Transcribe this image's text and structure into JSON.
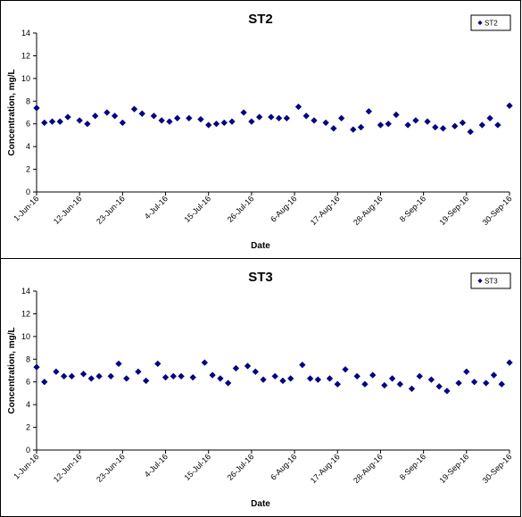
{
  "colors": {
    "marker": "#00008B",
    "axis": "#000000"
  },
  "chart_data": [
    {
      "type": "scatter",
      "title": "ST2",
      "xlabel": "Date",
      "ylabel": "Concentration, mg/L",
      "ylim": [
        0,
        14
      ],
      "yticks": [
        0,
        2,
        4,
        6,
        8,
        10,
        12,
        14
      ],
      "xlim": [
        "1-Jun-16",
        "30-Sep-16"
      ],
      "xticks": [
        "1-Jun-16",
        "12-Jun-16",
        "23-Jun-16",
        "4-Jul-16",
        "15-Jul-16",
        "26-Jul-16",
        "6-Aug-16",
        "17-Aug-16",
        "28-Aug-16",
        "8-Sep-16",
        "19-Sep-16",
        "30-Sep-16"
      ],
      "grid": false,
      "legend_position": "top-right",
      "series": [
        {
          "name": "ST2",
          "marker": "diamond",
          "points": [
            [
              "2016-06-01",
              7.4
            ],
            [
              "2016-06-03",
              6.1
            ],
            [
              "2016-06-05",
              6.2
            ],
            [
              "2016-06-07",
              6.2
            ],
            [
              "2016-06-09",
              6.6
            ],
            [
              "2016-06-12",
              6.3
            ],
            [
              "2016-06-14",
              6.0
            ],
            [
              "2016-06-16",
              6.7
            ],
            [
              "2016-06-19",
              7.0
            ],
            [
              "2016-06-21",
              6.7
            ],
            [
              "2016-06-23",
              6.1
            ],
            [
              "2016-06-26",
              7.3
            ],
            [
              "2016-06-28",
              6.9
            ],
            [
              "2016-07-01",
              6.7
            ],
            [
              "2016-07-03",
              6.3
            ],
            [
              "2016-07-05",
              6.2
            ],
            [
              "2016-07-07",
              6.5
            ],
            [
              "2016-07-10",
              6.5
            ],
            [
              "2016-07-13",
              6.4
            ],
            [
              "2016-07-15",
              5.9
            ],
            [
              "2016-07-17",
              6.0
            ],
            [
              "2016-07-19",
              6.1
            ],
            [
              "2016-07-21",
              6.2
            ],
            [
              "2016-07-24",
              7.0
            ],
            [
              "2016-07-26",
              6.2
            ],
            [
              "2016-07-28",
              6.6
            ],
            [
              "2016-07-31",
              6.6
            ],
            [
              "2016-08-02",
              6.5
            ],
            [
              "2016-08-04",
              6.5
            ],
            [
              "2016-08-07",
              7.5
            ],
            [
              "2016-08-09",
              6.7
            ],
            [
              "2016-08-11",
              6.3
            ],
            [
              "2016-08-14",
              6.1
            ],
            [
              "2016-08-16",
              5.6
            ],
            [
              "2016-08-18",
              6.5
            ],
            [
              "2016-08-21",
              5.5
            ],
            [
              "2016-08-23",
              5.7
            ],
            [
              "2016-08-25",
              7.1
            ],
            [
              "2016-08-28",
              5.9
            ],
            [
              "2016-08-30",
              6.0
            ],
            [
              "2016-09-01",
              6.8
            ],
            [
              "2016-09-04",
              5.9
            ],
            [
              "2016-09-06",
              6.3
            ],
            [
              "2016-09-09",
              6.2
            ],
            [
              "2016-09-11",
              5.7
            ],
            [
              "2016-09-13",
              5.6
            ],
            [
              "2016-09-16",
              5.8
            ],
            [
              "2016-09-18",
              6.1
            ],
            [
              "2016-09-20",
              5.3
            ],
            [
              "2016-09-23",
              5.9
            ],
            [
              "2016-09-25",
              6.5
            ],
            [
              "2016-09-27",
              5.9
            ],
            [
              "2016-09-30",
              7.6
            ]
          ]
        }
      ]
    },
    {
      "type": "scatter",
      "title": "ST3",
      "xlabel": "Date",
      "ylabel": "Concentration, mg/L",
      "ylim": [
        0,
        14
      ],
      "yticks": [
        0,
        2,
        4,
        6,
        8,
        10,
        12,
        14
      ],
      "xlim": [
        "1-Jun-16",
        "30-Sep-16"
      ],
      "xticks": [
        "1-Jun-16",
        "12-Jun-16",
        "23-Jun-16",
        "4-Jul-16",
        "15-Jul-16",
        "26-Jul-16",
        "6-Aug-16",
        "17-Aug-16",
        "28-Aug-16",
        "8-Sep-16",
        "19-Sep-16",
        "30-Sep-16"
      ],
      "grid": false,
      "legend_position": "top-right",
      "series": [
        {
          "name": "ST3",
          "marker": "diamond",
          "points": [
            [
              "2016-06-01",
              7.3
            ],
            [
              "2016-06-03",
              6.0
            ],
            [
              "2016-06-06",
              6.9
            ],
            [
              "2016-06-08",
              6.5
            ],
            [
              "2016-06-10",
              6.5
            ],
            [
              "2016-06-13",
              6.7
            ],
            [
              "2016-06-15",
              6.3
            ],
            [
              "2016-06-17",
              6.5
            ],
            [
              "2016-06-20",
              6.5
            ],
            [
              "2016-06-22",
              7.6
            ],
            [
              "2016-06-24",
              6.3
            ],
            [
              "2016-06-27",
              6.9
            ],
            [
              "2016-06-29",
              6.1
            ],
            [
              "2016-07-02",
              7.6
            ],
            [
              "2016-07-04",
              6.4
            ],
            [
              "2016-07-06",
              6.5
            ],
            [
              "2016-07-08",
              6.5
            ],
            [
              "2016-07-11",
              6.4
            ],
            [
              "2016-07-14",
              7.7
            ],
            [
              "2016-07-16",
              6.6
            ],
            [
              "2016-07-18",
              6.3
            ],
            [
              "2016-07-20",
              5.9
            ],
            [
              "2016-07-22",
              7.2
            ],
            [
              "2016-07-25",
              7.4
            ],
            [
              "2016-07-27",
              6.9
            ],
            [
              "2016-07-29",
              6.2
            ],
            [
              "2016-08-01",
              6.5
            ],
            [
              "2016-08-03",
              6.1
            ],
            [
              "2016-08-05",
              6.3
            ],
            [
              "2016-08-08",
              7.5
            ],
            [
              "2016-08-10",
              6.3
            ],
            [
              "2016-08-12",
              6.2
            ],
            [
              "2016-08-15",
              6.3
            ],
            [
              "2016-08-17",
              5.8
            ],
            [
              "2016-08-19",
              7.1
            ],
            [
              "2016-08-22",
              6.5
            ],
            [
              "2016-08-24",
              5.8
            ],
            [
              "2016-08-26",
              6.6
            ],
            [
              "2016-08-29",
              5.7
            ],
            [
              "2016-08-31",
              6.3
            ],
            [
              "2016-09-02",
              5.8
            ],
            [
              "2016-09-05",
              5.4
            ],
            [
              "2016-09-07",
              6.5
            ],
            [
              "2016-09-10",
              6.2
            ],
            [
              "2016-09-12",
              5.6
            ],
            [
              "2016-09-14",
              5.2
            ],
            [
              "2016-09-17",
              5.9
            ],
            [
              "2016-09-19",
              6.9
            ],
            [
              "2016-09-21",
              6.0
            ],
            [
              "2016-09-24",
              5.9
            ],
            [
              "2016-09-26",
              6.6
            ],
            [
              "2016-09-28",
              5.8
            ],
            [
              "2016-09-30",
              7.7
            ]
          ]
        }
      ]
    }
  ]
}
